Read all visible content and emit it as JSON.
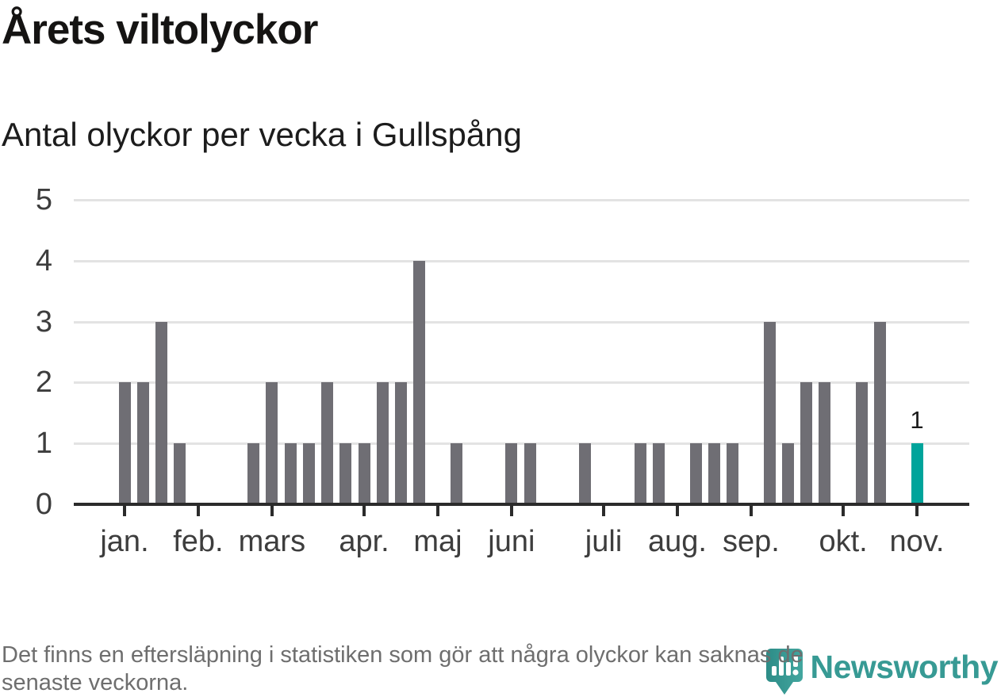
{
  "header": {
    "title": "Årets viltolyckor",
    "subtitle": "Antal olyckor per vecka i Gullspång"
  },
  "chart_data": {
    "type": "bar",
    "title": "Årets viltolyckor",
    "subtitle": "Antal olyckor per vecka i Gullspång",
    "x_unit": "vecka (ISO week of year)",
    "x": [
      1,
      2,
      3,
      4,
      5,
      6,
      7,
      8,
      9,
      10,
      11,
      12,
      13,
      14,
      15,
      16,
      17,
      18,
      19,
      20,
      21,
      22,
      23,
      24,
      25,
      26,
      27,
      28,
      29,
      30,
      31,
      32,
      33,
      34,
      35,
      36,
      37,
      38,
      39,
      40,
      41,
      42,
      43,
      44
    ],
    "values": [
      2,
      2,
      3,
      1,
      0,
      0,
      0,
      1,
      2,
      1,
      1,
      2,
      1,
      1,
      2,
      2,
      4,
      0,
      1,
      0,
      0,
      1,
      1,
      0,
      0,
      1,
      0,
      0,
      1,
      1,
      0,
      1,
      1,
      1,
      0,
      3,
      1,
      2,
      2,
      0,
      2,
      3,
      0,
      1
    ],
    "highlight": {
      "week": 44,
      "value": 1,
      "label": "1",
      "color": "#00a49b"
    },
    "bar_color": "#6f6e74",
    "ylim": [
      0,
      5
    ],
    "yticks": [
      "0",
      "1",
      "2",
      "3",
      "4",
      "5"
    ],
    "grid": "horizontal",
    "legend": "none",
    "month_ticks": [
      {
        "label": "jan.",
        "week": 1
      },
      {
        "label": "feb.",
        "week": 5
      },
      {
        "label": "mars",
        "week": 9
      },
      {
        "label": "apr.",
        "week": 14
      },
      {
        "label": "maj",
        "week": 18
      },
      {
        "label": "juni",
        "week": 22
      },
      {
        "label": "juli",
        "week": 27
      },
      {
        "label": "aug.",
        "week": 31
      },
      {
        "label": "sep.",
        "week": 35
      },
      {
        "label": "okt.",
        "week": 40
      },
      {
        "label": "nov.",
        "week": 44
      }
    ]
  },
  "footer": {
    "note": "Det finns en eftersläpning i statistiken som gör att några olyckor kan saknas de senaste veckorna.",
    "lines": [
      "Det finns en eftersläpning i statistiken som gör att några olyckor kan saknas de",
      "senaste veckorna."
    ]
  },
  "logo": {
    "text": "Newsworthy",
    "icon": "newsworthy-pin-icon",
    "text_color": "#379a94",
    "icon_color_dark": "#2d8c87",
    "icon_color_light": "#43a69f"
  }
}
